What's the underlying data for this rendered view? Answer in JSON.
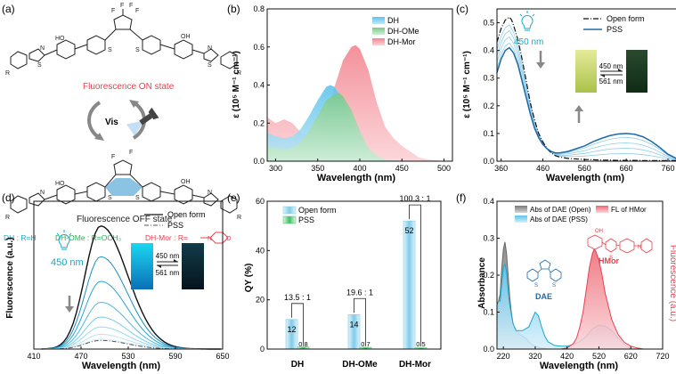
{
  "panels": {
    "a": {
      "label": "(a)",
      "on_state": "Fluorescence ON state",
      "off_state": "Fluorescence OFF state",
      "vis": "Vis",
      "substituent_dh": "DH : R=H",
      "substituent_dhome": "DH-OMe : R=OCH₃",
      "substituent_dhmor": "DH-Mor : R=",
      "atom_F": "F",
      "atom_S": "S",
      "atom_N": "N",
      "atom_OH": "OH",
      "atom_HO": "HO",
      "atom_R": "R",
      "atom_O": "O"
    },
    "b": {
      "label": "(b)"
    },
    "c": {
      "label": "(c)",
      "lamp_label": "450 nm",
      "inset_fwd": "450 nm",
      "inset_back": "561 nm"
    },
    "d": {
      "label": "(d)",
      "lamp_label": "450 nm",
      "inset_fwd": "450 nm",
      "inset_back": "561 nm"
    },
    "e": {
      "label": "(e)"
    },
    "f": {
      "label": "(f)",
      "mol_label_hmor": "HMor",
      "mol_label_dae": "DAE",
      "atom_OH": "OH",
      "atom_S": "S",
      "atom_N": "N"
    }
  },
  "colors": {
    "dh": "#5ec4ec",
    "dhome": "#8fd39a",
    "dhmor": "#f39aa5",
    "red": "#e8414f",
    "green": "#22b24c",
    "blue": "#1f6aa5",
    "cyan": "#1aa7c8"
  },
  "chart_data": [
    {
      "id": "b",
      "type": "area",
      "xlabel": "Wavelength (nm)",
      "ylabel": "ε (10⁵ M⁻¹ cm⁻¹)",
      "xlim": [
        290,
        510
      ],
      "ylim": [
        0,
        0.8
      ],
      "xticks": [
        "300",
        "350",
        "400",
        "450",
        "500"
      ],
      "yticks": [
        "0.0",
        "0.2",
        "0.4",
        "0.6",
        "0.8"
      ],
      "legend": [
        "DH",
        "DH-OMe",
        "DH-Mor"
      ],
      "series": [
        {
          "name": "DH",
          "x": [
            290,
            300,
            310,
            320,
            330,
            340,
            350,
            360,
            365,
            370,
            380,
            390,
            400,
            410,
            420,
            430,
            440
          ],
          "y": [
            0.15,
            0.13,
            0.12,
            0.13,
            0.17,
            0.24,
            0.32,
            0.39,
            0.4,
            0.39,
            0.32,
            0.22,
            0.12,
            0.05,
            0.02,
            0.01,
            0
          ]
        },
        {
          "name": "DH-OMe",
          "x": [
            290,
            300,
            310,
            320,
            330,
            340,
            350,
            360,
            370,
            375,
            380,
            390,
            400,
            410,
            420,
            430,
            440,
            450
          ],
          "y": [
            0.08,
            0.07,
            0.06,
            0.07,
            0.1,
            0.16,
            0.24,
            0.32,
            0.35,
            0.36,
            0.34,
            0.27,
            0.16,
            0.07,
            0.03,
            0.01,
            0.005,
            0
          ]
        },
        {
          "name": "DH-Mor",
          "x": [
            290,
            300,
            310,
            320,
            330,
            340,
            350,
            360,
            370,
            380,
            390,
            395,
            400,
            410,
            420,
            430,
            440,
            450,
            460,
            470,
            480,
            490,
            500
          ],
          "y": [
            0.23,
            0.2,
            0.22,
            0.2,
            0.15,
            0.13,
            0.16,
            0.25,
            0.39,
            0.53,
            0.6,
            0.61,
            0.59,
            0.48,
            0.31,
            0.18,
            0.12,
            0.08,
            0.05,
            0.02,
            0.01,
            0.005,
            0
          ]
        }
      ]
    },
    {
      "id": "c",
      "type": "line",
      "xlabel": "Wavelength (nm)",
      "ylabel": "ε (10⁵ M⁻¹ cm⁻¹)",
      "xlim": [
        350,
        790
      ],
      "ylim": [
        0,
        0.55
      ],
      "xticks": [
        "360",
        "460",
        "560",
        "660",
        "760"
      ],
      "yticks": [
        "0.0",
        "0.1",
        "0.2",
        "0.3",
        "0.4",
        "0.5"
      ],
      "legend": [
        "Open form",
        "PSS"
      ],
      "series": [
        {
          "name": "Open form",
          "style": "dashdot",
          "x": [
            350,
            360,
            370,
            380,
            385,
            390,
            400,
            410,
            420,
            430,
            440,
            450,
            460,
            470,
            480,
            490,
            500,
            520,
            540,
            560,
            580,
            600,
            620,
            640,
            660,
            680,
            700,
            720,
            740,
            760,
            780
          ],
          "y": [
            0.43,
            0.48,
            0.51,
            0.52,
            0.51,
            0.49,
            0.44,
            0.37,
            0.29,
            0.21,
            0.15,
            0.1,
            0.07,
            0.045,
            0.03,
            0.02,
            0.015,
            0.01,
            0.008,
            0.006,
            0.005,
            0.004,
            0.004,
            0.003,
            0.003,
            0.003,
            0.002,
            0.002,
            0.002,
            0.002,
            0.002
          ]
        },
        {
          "name": "PSS",
          "style": "solid",
          "x": [
            350,
            360,
            370,
            380,
            390,
            400,
            410,
            420,
            430,
            440,
            450,
            460,
            470,
            480,
            490,
            500,
            520,
            540,
            560,
            580,
            600,
            620,
            640,
            660,
            680,
            700,
            720,
            740,
            760,
            780
          ],
          "y": [
            0.32,
            0.37,
            0.4,
            0.41,
            0.39,
            0.35,
            0.29,
            0.23,
            0.17,
            0.12,
            0.085,
            0.06,
            0.045,
            0.035,
            0.03,
            0.03,
            0.035,
            0.045,
            0.055,
            0.07,
            0.082,
            0.092,
            0.098,
            0.1,
            0.097,
            0.088,
            0.072,
            0.05,
            0.025,
            0.01
          ]
        }
      ],
      "intermediate_fractions": [
        0.25,
        0.45,
        0.65,
        0.85
      ]
    },
    {
      "id": "d",
      "type": "line",
      "xlabel": "Wavelength (nm)",
      "ylabel": "Fluorescence (a.u.)",
      "xlim": [
        410,
        650
      ],
      "ylim": [
        0,
        1.2
      ],
      "xticks": [
        "410",
        "470",
        "530",
        "590",
        "650"
      ],
      "yticks": [],
      "legend": [
        "Open form",
        "PSS"
      ],
      "peak_nm": 495,
      "series_peaks": [
        1.0,
        0.75,
        0.55,
        0.38,
        0.26,
        0.18,
        0.12,
        0.08
      ],
      "pss_peak": 0.07
    },
    {
      "id": "e",
      "type": "bar",
      "xlabel": "",
      "ylabel": "QY (%)",
      "ylim": [
        0,
        60
      ],
      "yticks": [
        "0",
        "20",
        "40",
        "60"
      ],
      "categories": [
        "DH",
        "DH-OMe",
        "DH-Mor"
      ],
      "legend": [
        "Open form",
        "PSS"
      ],
      "series": [
        {
          "name": "Open form",
          "values": [
            12,
            14,
            52
          ]
        },
        {
          "name": "PSS",
          "values": [
            0.8,
            0.7,
            0.5
          ]
        }
      ],
      "value_labels": [
        [
          "12",
          "0.8"
        ],
        [
          "14",
          "0.7"
        ],
        [
          "52",
          "0.5"
        ]
      ],
      "ratios": [
        "13.5 : 1",
        "19.6 : 1",
        "100.3 : 1"
      ]
    },
    {
      "id": "f",
      "type": "area",
      "xlabel": "Wavelength (nm)",
      "ylabel": "Absorbance",
      "ylabel_right": "Fluorescence (a.u.)",
      "xlim": [
        200,
        720
      ],
      "ylim": [
        0,
        0.4
      ],
      "xticks": [
        "220",
        "320",
        "420",
        "520",
        "620",
        "720"
      ],
      "yticks": [
        "0.0",
        "0.1",
        "0.2",
        "0.3",
        "0.4"
      ],
      "legend": [
        "Abs of DAE (Open)",
        "Abs of DAE (PSS)",
        "FL of HMor"
      ],
      "series": [
        {
          "name": "Abs of DAE (Open)",
          "x": [
            200,
            205,
            210,
            215,
            220,
            225,
            230,
            235,
            240,
            245,
            250,
            255,
            260,
            270,
            280,
            290,
            300,
            310,
            320,
            330,
            340,
            350,
            360
          ],
          "y": [
            0.12,
            0.13,
            0.15,
            0.22,
            0.27,
            0.29,
            0.26,
            0.2,
            0.14,
            0.1,
            0.07,
            0.055,
            0.05,
            0.04,
            0.035,
            0.03,
            0.02,
            0.012,
            0.008,
            0.005,
            0.003,
            0.002,
            0
          ]
        },
        {
          "name": "Abs of DAE (PSS)",
          "x": [
            200,
            205,
            210,
            215,
            220,
            225,
            230,
            235,
            240,
            250,
            260,
            270,
            280,
            290,
            300,
            310,
            320,
            330,
            340,
            350,
            360,
            380,
            400,
            420,
            440,
            460,
            480,
            500,
            520,
            540,
            560,
            580,
            600,
            620
          ],
          "y": [
            0.12,
            0.13,
            0.13,
            0.18,
            0.22,
            0.23,
            0.21,
            0.16,
            0.12,
            0.07,
            0.05,
            0.05,
            0.05,
            0.055,
            0.06,
            0.08,
            0.1,
            0.09,
            0.06,
            0.035,
            0.02,
            0.01,
            0.008,
            0.008,
            0.012,
            0.02,
            0.035,
            0.055,
            0.065,
            0.062,
            0.05,
            0.03,
            0.012,
            0
          ]
        },
        {
          "name": "FL of HMor",
          "x": [
            400,
            420,
            440,
            450,
            460,
            470,
            480,
            490,
            500,
            505,
            510,
            520,
            530,
            540,
            560,
            580,
            600,
            620,
            640,
            660
          ],
          "y": [
            0,
            0.003,
            0.015,
            0.03,
            0.06,
            0.1,
            0.16,
            0.22,
            0.26,
            0.27,
            0.265,
            0.24,
            0.2,
            0.15,
            0.08,
            0.04,
            0.018,
            0.008,
            0.003,
            0
          ]
        }
      ]
    }
  ]
}
